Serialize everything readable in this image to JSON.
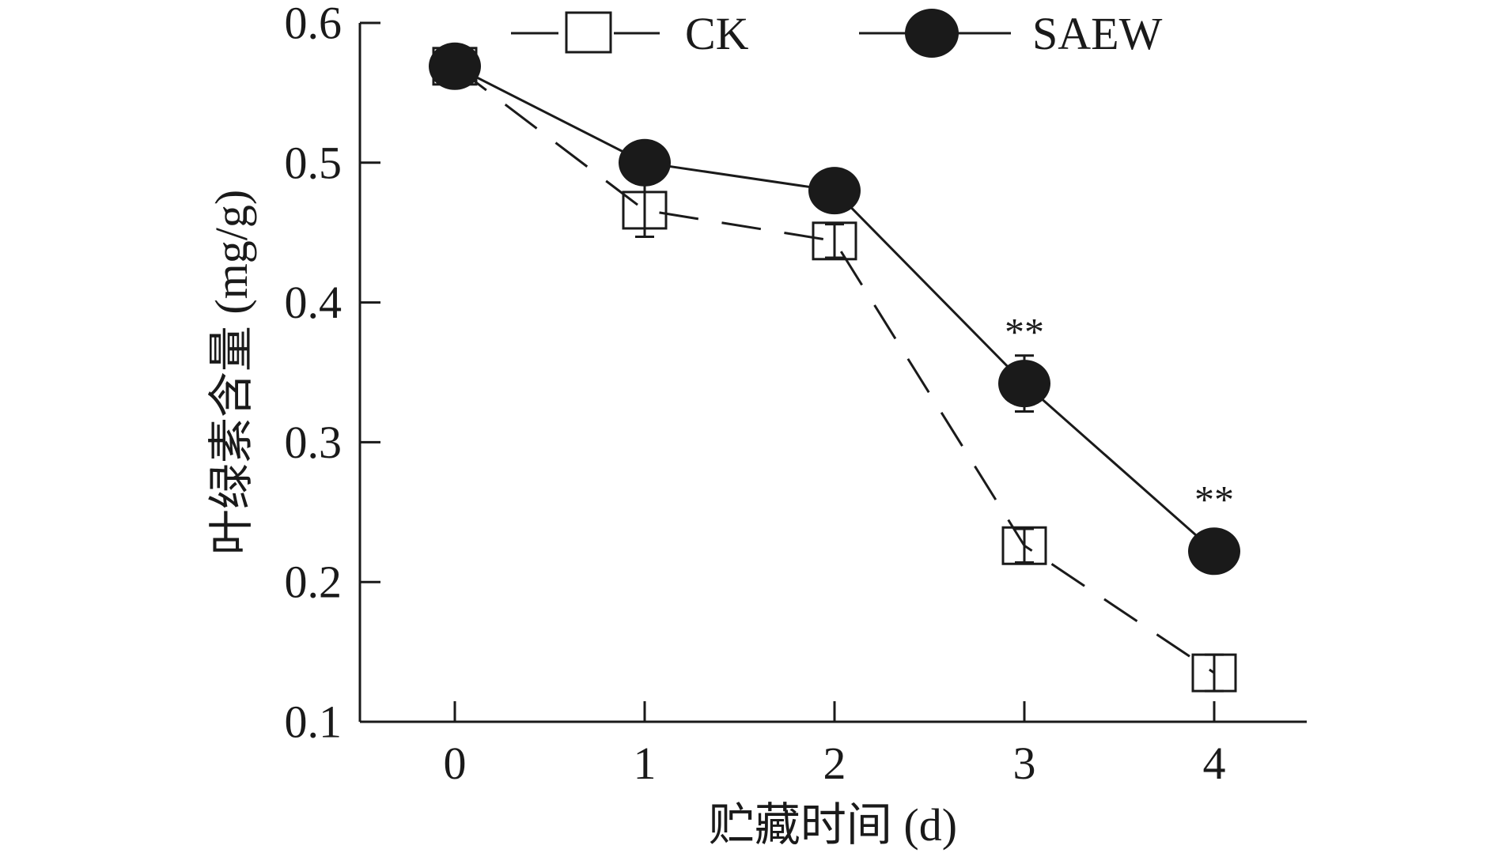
{
  "chart_data": {
    "type": "line",
    "xlabel": "贮藏时间 (d)",
    "ylabel": "叶绿素含量 (mg/g)",
    "x": [
      0,
      1,
      2,
      3,
      4
    ],
    "xticks": [
      "0",
      "1",
      "2",
      "3",
      "4"
    ],
    "yticks": [
      "0.1",
      "0.2",
      "0.3",
      "0.4",
      "0.5",
      "0.6"
    ],
    "xlim": [
      -0.5,
      4.5
    ],
    "ylim": [
      0.1,
      0.6
    ],
    "grid": false,
    "legend_position": "top",
    "series": [
      {
        "name": "CK",
        "marker": "open-square",
        "line": "dashed",
        "color": "#1a1a1a",
        "values": [
          0.569,
          0.466,
          0.444,
          0.226,
          0.135
        ],
        "errors": [
          0.005,
          0.019,
          0.012,
          0.012,
          0.013
        ]
      },
      {
        "name": "SAEW",
        "marker": "filled-circle",
        "line": "solid",
        "color": "#1a1a1a",
        "values": [
          0.569,
          0.5,
          0.48,
          0.342,
          0.222
        ],
        "errors": [
          0.005,
          0.006,
          0.006,
          0.02,
          0.006
        ]
      }
    ],
    "annotations": [
      {
        "x": 3,
        "y": 0.378,
        "text": "**"
      },
      {
        "x": 4,
        "y": 0.258,
        "text": "**"
      }
    ]
  }
}
